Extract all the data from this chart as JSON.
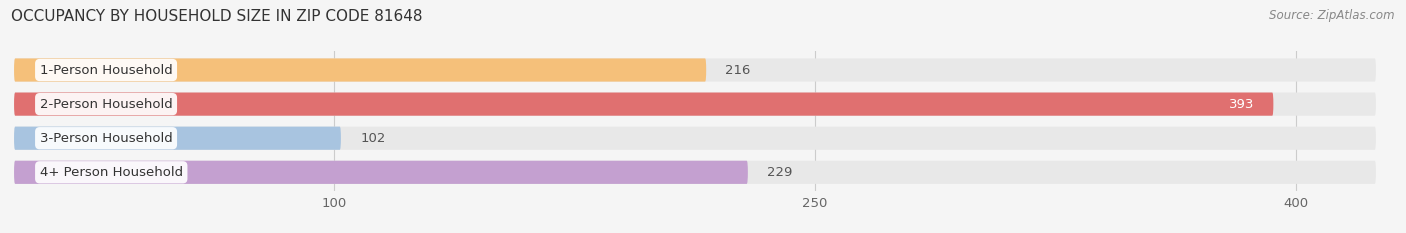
{
  "title": "OCCUPANCY BY HOUSEHOLD SIZE IN ZIP CODE 81648",
  "source": "Source: ZipAtlas.com",
  "categories": [
    "1-Person Household",
    "2-Person Household",
    "3-Person Household",
    "4+ Person Household"
  ],
  "values": [
    216,
    393,
    102,
    229
  ],
  "bar_colors": [
    "#f5c07a",
    "#e07070",
    "#a8c4e0",
    "#c4a0d0"
  ],
  "label_colors": [
    "#555555",
    "#ffffff",
    "#555555",
    "#555555"
  ],
  "xlim": [
    0,
    430
  ],
  "xticks": [
    100,
    250,
    400
  ],
  "background_color": "#f5f5f5",
  "bar_background": "#e8e8e8",
  "title_fontsize": 11,
  "source_fontsize": 8.5,
  "bar_height": 0.68,
  "bar_label_fontsize": 9.5,
  "tick_fontsize": 9.5,
  "value_label_fontsize": 9.5
}
